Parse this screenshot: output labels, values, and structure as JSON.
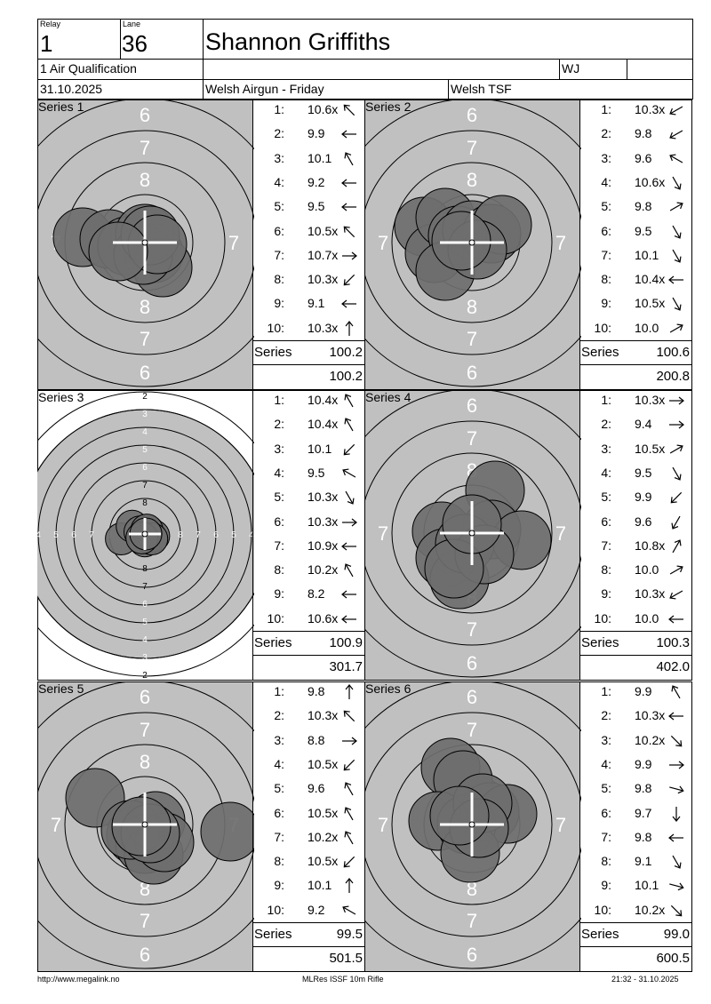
{
  "header": {
    "relay_label": "Relay",
    "relay_value": "1",
    "lane_label": "Lane",
    "lane_value": "36",
    "shooter_name": "Shannon Griffiths",
    "event": "1 Air Qualification",
    "category": "WJ",
    "date": "31.10.2025",
    "competition": "Welsh Airgun - Friday",
    "club": "Welsh TSF"
  },
  "series": [
    {
      "title": "Series 1",
      "target": "rifle",
      "rings": [
        "6",
        "7",
        "8"
      ],
      "shots": [
        {
          "no": "1:",
          "value": "10.6x",
          "dir": 135
        },
        {
          "no": "2:",
          "value": "9.9",
          "dir": 180
        },
        {
          "no": "3:",
          "value": "10.1",
          "dir": 120
        },
        {
          "no": "4:",
          "value": "9.2",
          "dir": 180
        },
        {
          "no": "5:",
          "value": "9.5",
          "dir": 180
        },
        {
          "no": "6:",
          "value": "10.5x",
          "dir": 135
        },
        {
          "no": "7:",
          "value": "10.7x",
          "dir": 0
        },
        {
          "no": "8:",
          "value": "10.3x",
          "dir": 225
        },
        {
          "no": "9:",
          "value": "9.1",
          "dir": 180
        },
        {
          "no": "10:",
          "value": "10.3x",
          "dir": 90
        }
      ],
      "series_label": "Series",
      "series_score": "100.2",
      "cumulative": "100.2"
    },
    {
      "title": "Series 2",
      "target": "rifle",
      "rings": [
        "6",
        "7",
        "8"
      ],
      "shots": [
        {
          "no": "1:",
          "value": "10.3x",
          "dir": 210
        },
        {
          "no": "2:",
          "value": "9.8",
          "dir": 210
        },
        {
          "no": "3:",
          "value": "9.6",
          "dir": 150
        },
        {
          "no": "4:",
          "value": "10.6x",
          "dir": 300
        },
        {
          "no": "5:",
          "value": "9.8",
          "dir": 30
        },
        {
          "no": "6:",
          "value": "9.5",
          "dir": 300
        },
        {
          "no": "7:",
          "value": "10.1",
          "dir": 300
        },
        {
          "no": "8:",
          "value": "10.4x",
          "dir": 180
        },
        {
          "no": "9:",
          "value": "10.5x",
          "dir": 300
        },
        {
          "no": "10:",
          "value": "10.0",
          "dir": 30
        }
      ],
      "series_label": "Series",
      "series_score": "100.6",
      "cumulative": "200.8"
    },
    {
      "title": "Series 3",
      "target": "air",
      "rings": [
        "2",
        "3",
        "4",
        "5",
        "6",
        "7",
        "8"
      ],
      "shots": [
        {
          "no": "1:",
          "value": "10.4x",
          "dir": 120
        },
        {
          "no": "2:",
          "value": "10.4x",
          "dir": 120
        },
        {
          "no": "3:",
          "value": "10.1",
          "dir": 225
        },
        {
          "no": "4:",
          "value": "9.5",
          "dir": 150
        },
        {
          "no": "5:",
          "value": "10.3x",
          "dir": 300
        },
        {
          "no": "6:",
          "value": "10.3x",
          "dir": 0
        },
        {
          "no": "7:",
          "value": "10.9x",
          "dir": 180
        },
        {
          "no": "8:",
          "value": "10.2x",
          "dir": 120
        },
        {
          "no": "9:",
          "value": "8.2",
          "dir": 180
        },
        {
          "no": "10:",
          "value": "10.6x",
          "dir": 180
        }
      ],
      "series_label": "Series",
      "series_score": "100.9",
      "cumulative": "301.7"
    },
    {
      "title": "Series 4",
      "target": "rifle",
      "rings": [
        "6",
        "7",
        "8"
      ],
      "shots": [
        {
          "no": "1:",
          "value": "10.3x",
          "dir": 0
        },
        {
          "no": "2:",
          "value": "9.4",
          "dir": 0
        },
        {
          "no": "3:",
          "value": "10.5x",
          "dir": 30
        },
        {
          "no": "4:",
          "value": "9.5",
          "dir": 300
        },
        {
          "no": "5:",
          "value": "9.9",
          "dir": 225
        },
        {
          "no": "6:",
          "value": "9.6",
          "dir": 240
        },
        {
          "no": "7:",
          "value": "10.8x",
          "dir": 60
        },
        {
          "no": "8:",
          "value": "10.0",
          "dir": 30
        },
        {
          "no": "9:",
          "value": "10.3x",
          "dir": 210
        },
        {
          "no": "10:",
          "value": "10.0",
          "dir": 180
        }
      ],
      "series_label": "Series",
      "series_score": "100.3",
      "cumulative": "402.0"
    },
    {
      "title": "Series 5",
      "target": "rifle",
      "rings": [
        "6",
        "7",
        "8"
      ],
      "shots": [
        {
          "no": "1:",
          "value": "9.8",
          "dir": 90
        },
        {
          "no": "2:",
          "value": "10.3x",
          "dir": 135
        },
        {
          "no": "3:",
          "value": "8.8",
          "dir": 0
        },
        {
          "no": "4:",
          "value": "10.5x",
          "dir": 225
        },
        {
          "no": "5:",
          "value": "9.6",
          "dir": 120
        },
        {
          "no": "6:",
          "value": "10.5x",
          "dir": 120
        },
        {
          "no": "7:",
          "value": "10.2x",
          "dir": 120
        },
        {
          "no": "8:",
          "value": "10.5x",
          "dir": 225
        },
        {
          "no": "9:",
          "value": "10.1",
          "dir": 90
        },
        {
          "no": "10:",
          "value": "9.2",
          "dir": 150
        }
      ],
      "series_label": "Series",
      "series_score": "99.5",
      "cumulative": "501.5"
    },
    {
      "title": "Series 6",
      "target": "rifle",
      "rings": [
        "6",
        "7",
        "8"
      ],
      "shots": [
        {
          "no": "1:",
          "value": "9.9",
          "dir": 120
        },
        {
          "no": "2:",
          "value": "10.3x",
          "dir": 180
        },
        {
          "no": "3:",
          "value": "10.2x",
          "dir": 315
        },
        {
          "no": "4:",
          "value": "9.9",
          "dir": 0
        },
        {
          "no": "5:",
          "value": "9.8",
          "dir": 345
        },
        {
          "no": "6:",
          "value": "9.7",
          "dir": 270
        },
        {
          "no": "7:",
          "value": "9.8",
          "dir": 180
        },
        {
          "no": "8:",
          "value": "9.1",
          "dir": 300
        },
        {
          "no": "9:",
          "value": "10.1",
          "dir": 345
        },
        {
          "no": "10:",
          "value": "10.2x",
          "dir": 315
        }
      ],
      "series_label": "Series",
      "series_score": "99.0",
      "cumulative": "600.5"
    }
  ],
  "footer": {
    "left": "http://www.megalink.no",
    "center": "MLRes ISSF 10m Rifle",
    "right": "21:32 - 31.10.2025"
  },
  "colors": {
    "grey_area": "#c0c0c0",
    "shot_fill": "#6e6e6e",
    "crosshair": "#ffffff",
    "line": "#000000"
  }
}
